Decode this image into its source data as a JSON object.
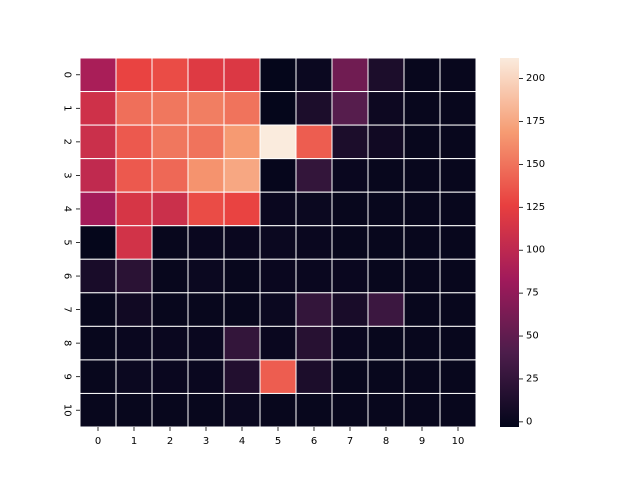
{
  "chart_data": {
    "type": "heatmap",
    "title": "",
    "xlabel": "",
    "ylabel": "",
    "x_categories": [
      "0",
      "1",
      "2",
      "3",
      "4",
      "5",
      "6",
      "7",
      "8",
      "9",
      "10"
    ],
    "y_categories": [
      "0",
      "1",
      "2",
      "3",
      "4",
      "5",
      "6",
      "7",
      "8",
      "9",
      "10"
    ],
    "values": [
      [
        88,
        128,
        132,
        120,
        118,
        -2,
        2,
        58,
        12,
        0,
        0
      ],
      [
        110,
        148,
        152,
        155,
        150,
        -2,
        12,
        45,
        3,
        0,
        0
      ],
      [
        108,
        138,
        152,
        150,
        168,
        212,
        140,
        12,
        5,
        0,
        0
      ],
      [
        102,
        138,
        145,
        165,
        175,
        -1,
        25,
        1,
        0,
        0,
        0
      ],
      [
        85,
        115,
        108,
        132,
        128,
        1,
        2,
        0,
        0,
        0,
        0
      ],
      [
        -2,
        112,
        0,
        1,
        1,
        2,
        1,
        0,
        0,
        0,
        0
      ],
      [
        10,
        20,
        0,
        2,
        0,
        1,
        1,
        1,
        0,
        0,
        0
      ],
      [
        0,
        5,
        0,
        0,
        0,
        2,
        25,
        10,
        30,
        0,
        0
      ],
      [
        0,
        1,
        1,
        1,
        25,
        1,
        18,
        1,
        0,
        0,
        0
      ],
      [
        0,
        2,
        1,
        1,
        15,
        140,
        12,
        0,
        0,
        0,
        0
      ],
      [
        0,
        0,
        0,
        0,
        2,
        0,
        0,
        0,
        0,
        0,
        0
      ]
    ],
    "colorbar": {
      "range": [
        -3,
        212
      ],
      "ticks": [
        0,
        25,
        50,
        75,
        100,
        125,
        150,
        175,
        200
      ],
      "colormap": "rocket",
      "colors": [
        "#03051a",
        "#4c1d4b",
        "#a11a5b",
        "#e83f3f",
        "#f69c73",
        "#faebdd"
      ]
    },
    "cell_border_color": "#ffffff",
    "grid": false
  }
}
